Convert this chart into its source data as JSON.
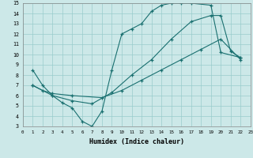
{
  "xlabel": "Humidex (Indice chaleur)",
  "bg_color": "#cce8e8",
  "line_color": "#1a7070",
  "grid_color": "#99cccc",
  "xlim": [
    0,
    23
  ],
  "ylim": [
    3,
    15
  ],
  "xticks": [
    0,
    1,
    2,
    3,
    4,
    5,
    6,
    7,
    8,
    9,
    10,
    11,
    12,
    13,
    14,
    15,
    16,
    17,
    18,
    19,
    20,
    21,
    22,
    23
  ],
  "yticks": [
    3,
    4,
    5,
    6,
    7,
    8,
    9,
    10,
    11,
    12,
    13,
    14,
    15
  ],
  "curve1_x": [
    1,
    2,
    3,
    4,
    5,
    6,
    7,
    8,
    9,
    10,
    11,
    12,
    13,
    14,
    15,
    16,
    17,
    19,
    20,
    22
  ],
  "curve1_y": [
    8.5,
    7.0,
    6.0,
    5.3,
    4.8,
    3.5,
    3.0,
    4.5,
    8.5,
    12.0,
    12.5,
    13.0,
    14.2,
    14.8,
    15.0,
    15.0,
    15.0,
    14.8,
    10.2,
    9.7
  ],
  "curve2_x": [
    1,
    2,
    3,
    5,
    8,
    10,
    12,
    14,
    16,
    18,
    20,
    22
  ],
  "curve2_y": [
    7.0,
    6.5,
    6.2,
    6.0,
    5.8,
    6.5,
    7.5,
    8.5,
    9.5,
    10.5,
    11.5,
    9.5
  ],
  "curve3_x": [
    1,
    3,
    5,
    7,
    9,
    11,
    13,
    15,
    17,
    19,
    20,
    21,
    22
  ],
  "curve3_y": [
    7.0,
    6.0,
    5.5,
    5.2,
    6.3,
    8.0,
    9.5,
    11.5,
    13.2,
    13.8,
    13.8,
    10.3,
    9.7
  ]
}
